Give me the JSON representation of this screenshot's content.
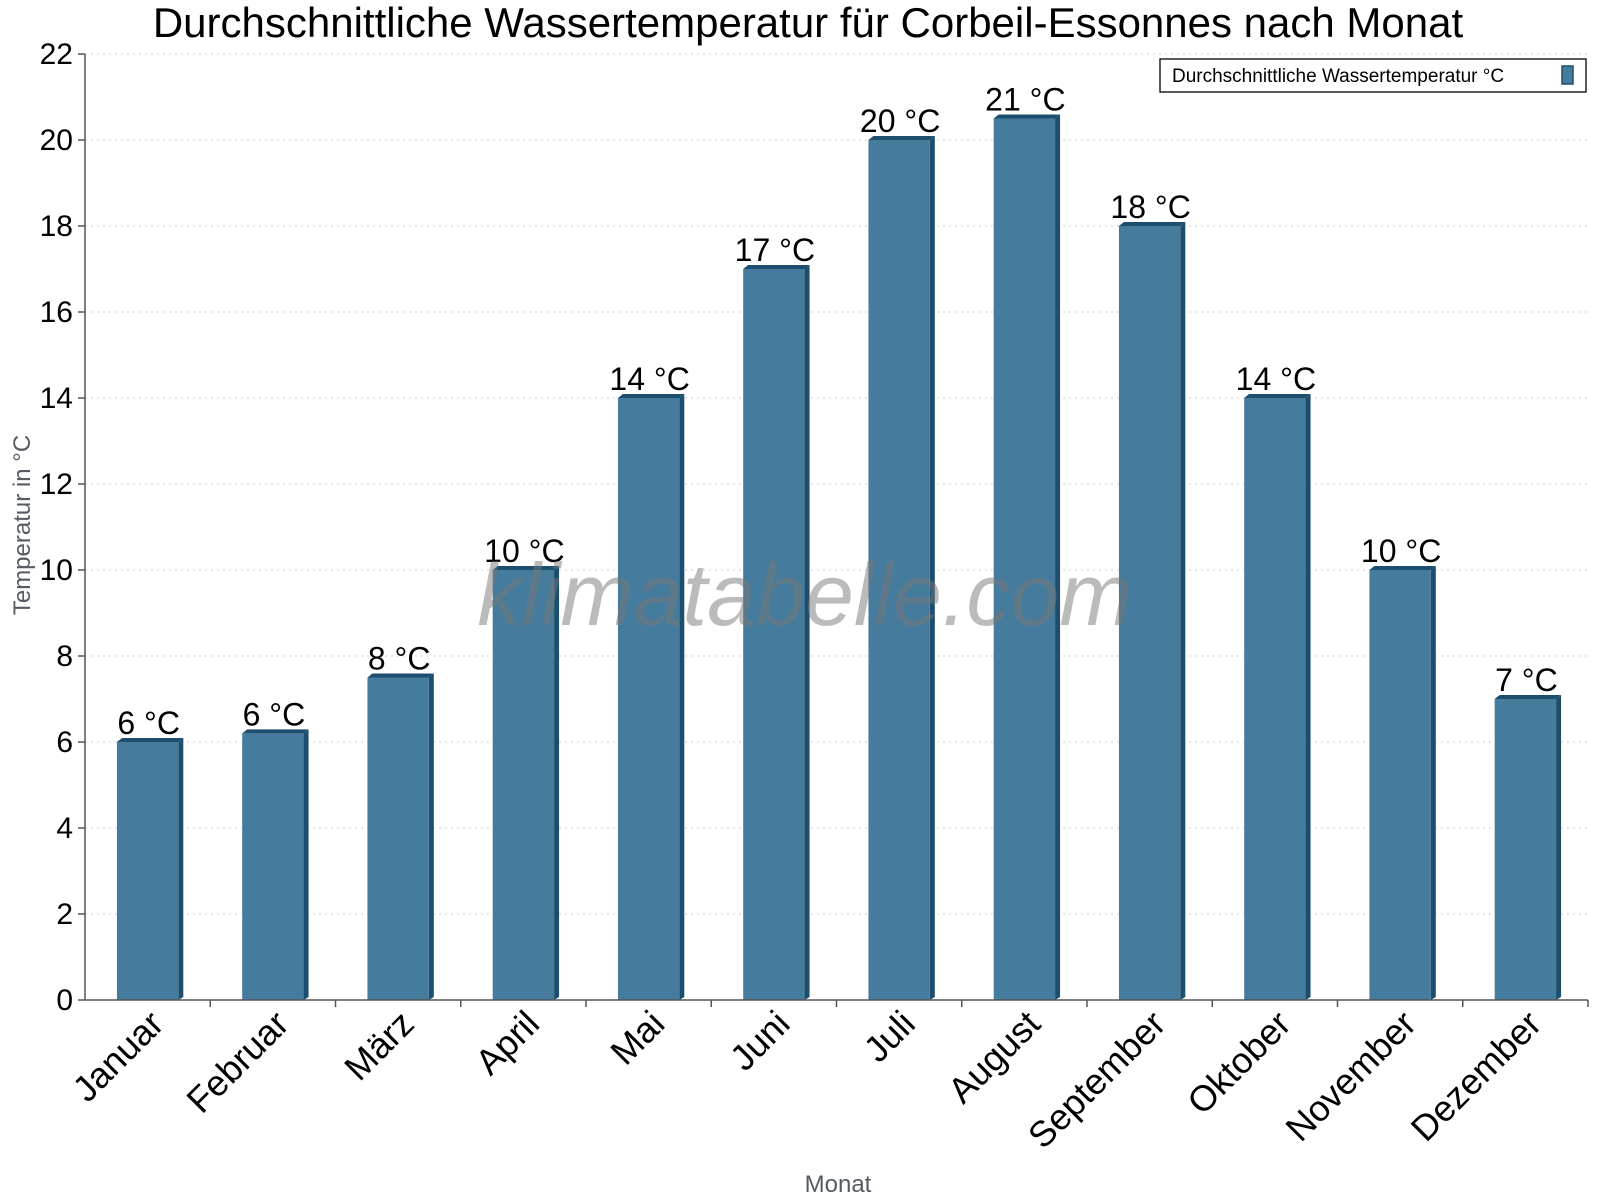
{
  "chart_data": {
    "type": "bar",
    "title": "Durchschnittliche Wassertemperatur für Corbeil-Essonnes nach Monat",
    "xlabel": "Monat",
    "ylabel": "Temperatur in °C",
    "categories": [
      "Januar",
      "Februar",
      "März",
      "April",
      "Mai",
      "Juni",
      "Juli",
      "August",
      "September",
      "Oktober",
      "November",
      "Dezember"
    ],
    "series": [
      {
        "name": "Durchschnittliche Wassertemperatur °C",
        "values": [
          6.0,
          6.2,
          7.5,
          10.0,
          14.0,
          17.0,
          20.0,
          20.5,
          18.0,
          14.0,
          10.0,
          7.0
        ],
        "data_labels": [
          "6 °C",
          "6 °C",
          "8 °C",
          "10 °C",
          "14 °C",
          "17 °C",
          "20 °C",
          "21 °C",
          "18 °C",
          "14 °C",
          "10 °C",
          "7 °C"
        ]
      }
    ],
    "ylim": [
      0,
      22
    ],
    "yticks": [
      0,
      2,
      4,
      6,
      8,
      10,
      12,
      14,
      16,
      18,
      20,
      22
    ],
    "grid": true,
    "legend_position": "top-right",
    "colors": {
      "bar": "#457b9d",
      "bar_edge": "#1d4e6e",
      "grid": "#cccccc",
      "axis": "#555555"
    }
  },
  "watermark": "klimatabelle.com"
}
